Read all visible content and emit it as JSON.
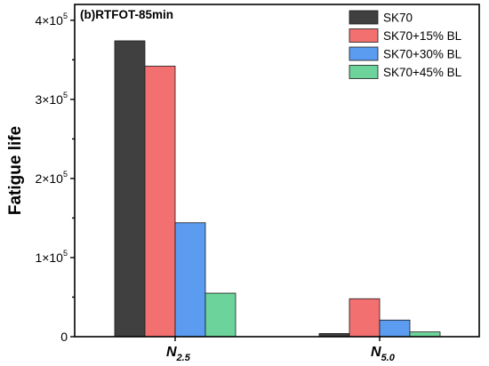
{
  "chart_data": {
    "type": "bar",
    "title": "(b)RTFOT-85min",
    "ylabel": "Fatigue life",
    "xlabel": "",
    "categories": [
      {
        "main": "N",
        "sub": "2.5"
      },
      {
        "main": "N",
        "sub": "5.0"
      }
    ],
    "series": [
      {
        "name": "SK70",
        "color": "#404040",
        "values": [
          374000,
          4000
        ]
      },
      {
        "name": "SK70+15% BL",
        "color": "#f27070",
        "values": [
          342000,
          48000
        ]
      },
      {
        "name": "SK70+30% BL",
        "color": "#5b9cf0",
        "values": [
          144000,
          21000
        ]
      },
      {
        "name": "SK70+45% BL",
        "color": "#6cd49a",
        "values": [
          55000,
          6000
        ]
      }
    ],
    "ylim": [
      0,
      420000
    ],
    "yticks": [
      {
        "value": 0,
        "label": "0",
        "exp": ""
      },
      {
        "value": 100000,
        "label": "1×10",
        "exp": "5"
      },
      {
        "value": 200000,
        "label": "2×10",
        "exp": "5"
      },
      {
        "value": 300000,
        "label": "3×10",
        "exp": "5"
      },
      {
        "value": 400000,
        "label": "4×10",
        "exp": "5"
      }
    ],
    "legend_position": "top-right",
    "grid": false
  }
}
